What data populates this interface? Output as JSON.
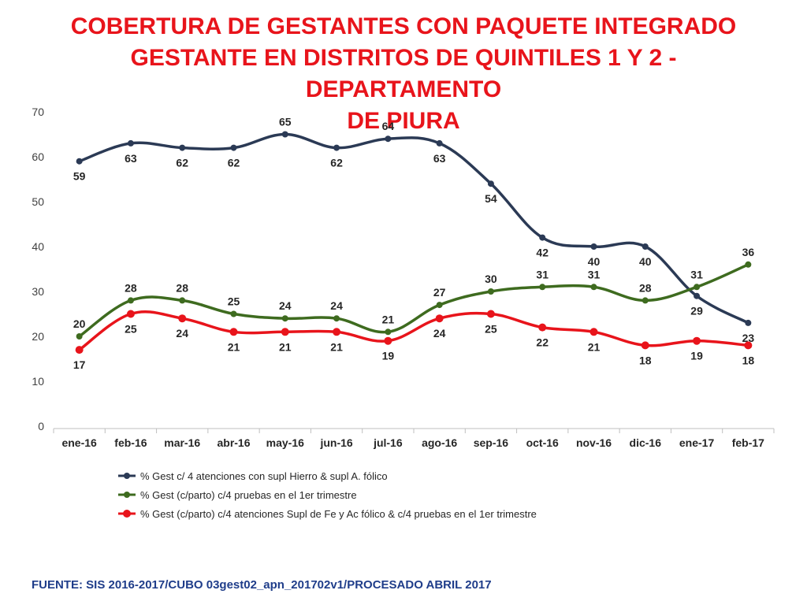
{
  "title_lines": [
    "COBERTURA DE GESTANTES CON PAQUETE INTEGRADO",
    "GESTANTE EN DISTRITOS DE QUINTILES 1 Y 2 - DEPARTAMENTO",
    "DE PIURA"
  ],
  "source": "FUENTE: SIS 2016-2017/CUBO 03gest02_apn_201702v1/PROCESADO ABRIL 2017",
  "chart_data": {
    "type": "line",
    "title": "COBERTURA DE GESTANTES CON PAQUETE INTEGRADO GESTANTE EN DISTRITOS DE QUINTILES 1 Y 2 - DEPARTAMENTO DE PIURA",
    "categories": [
      "ene-16",
      "feb-16",
      "mar-16",
      "abr-16",
      "may-16",
      "jun-16",
      "jul-16",
      "ago-16",
      "sep-16",
      "oct-16",
      "nov-16",
      "dic-16",
      "ene-17",
      "feb-17"
    ],
    "ylim": [
      0,
      70
    ],
    "yticks": [
      0,
      10,
      20,
      30,
      40,
      50,
      60,
      70
    ],
    "grid": false,
    "legend_position": "bottom",
    "smooth": true,
    "series": [
      {
        "name": "% Gest c/ 4 atenciones con supl Hierro & supl A. fólico",
        "color": "#2b3a55",
        "values": [
          59,
          63,
          62,
          62,
          65,
          62,
          64,
          63,
          54,
          42,
          40,
          40,
          29,
          23
        ],
        "label_side": [
          "below",
          "below",
          "below",
          "below",
          "above",
          "below",
          "above",
          "below",
          "below",
          "below",
          "below",
          "below",
          "below",
          "below"
        ]
      },
      {
        "name": "% Gest (c/parto) c/4 pruebas en el 1er trimestre",
        "color": "#3e6b1f",
        "values": [
          20,
          28,
          28,
          25,
          24,
          24,
          21,
          27,
          30,
          31,
          31,
          28,
          31,
          36
        ],
        "label_side": [
          "above",
          "above",
          "above",
          "above",
          "above",
          "above",
          "above",
          "above",
          "above",
          "above",
          "above",
          "above",
          "above",
          "above"
        ]
      },
      {
        "name": "% Gest (c/parto) c/4 atenciones Supl de Fe y Ac fólico & c/4 pruebas en el 1er trimestre",
        "color": "#e8141b",
        "values": [
          17,
          25,
          24,
          21,
          21,
          21,
          19,
          24,
          25,
          22,
          21,
          18,
          19,
          18
        ],
        "label_side": [
          "below",
          "below",
          "below",
          "below",
          "below",
          "below",
          "below",
          "below",
          "below",
          "below",
          "below",
          "below",
          "below",
          "below"
        ]
      }
    ]
  }
}
